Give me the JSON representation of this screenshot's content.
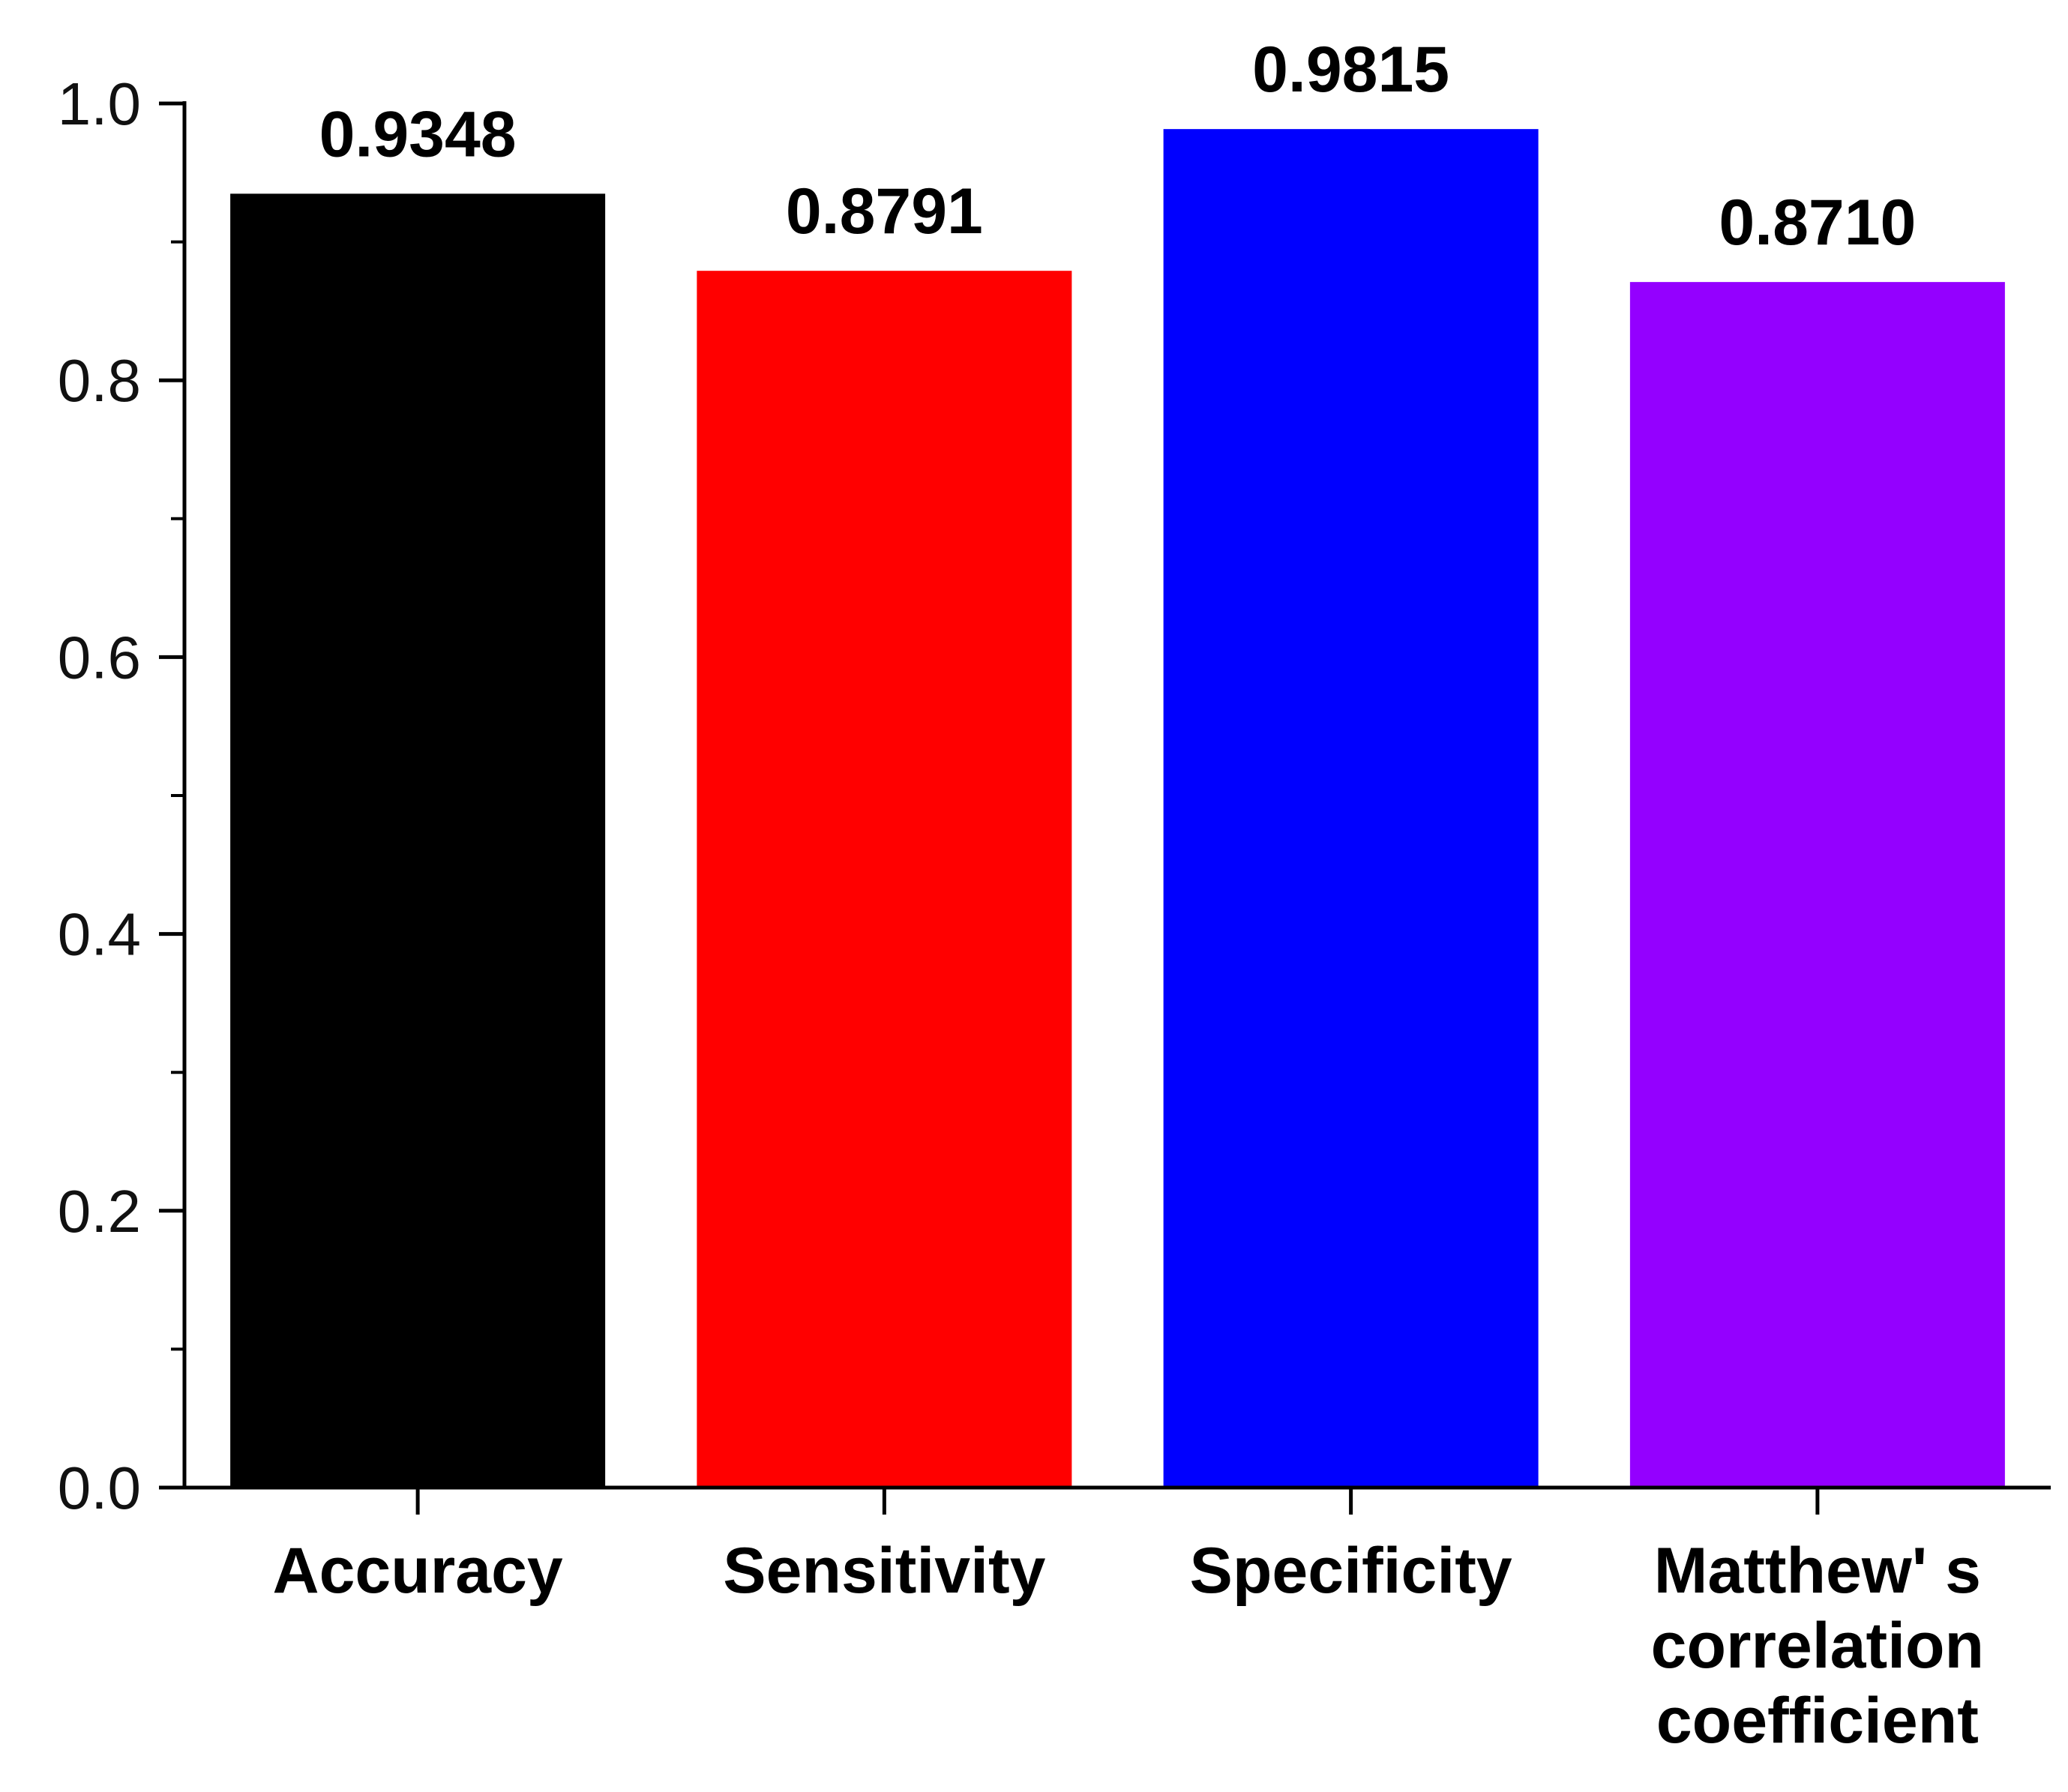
{
  "chart_data": {
    "type": "bar",
    "title": "",
    "xlabel": "",
    "ylabel": "",
    "ylim": [
      0,
      1.0
    ],
    "yticks": [
      "0.0",
      "0.2",
      "0.4",
      "0.6",
      "0.8",
      "1.0"
    ],
    "ytick_values": [
      0,
      0.2,
      0.4,
      0.6,
      0.8,
      1.0
    ],
    "minor_tick_step": 0.1,
    "grid": false,
    "categories": [
      [
        "Accuracy"
      ],
      [
        "Sensitivity"
      ],
      [
        "Specificity"
      ],
      [
        "Matthew' s",
        "correlation",
        "coefficient"
      ]
    ],
    "values": [
      0.9348,
      0.8791,
      0.9815,
      0.871
    ],
    "value_labels": [
      "0.9348",
      "0.8791",
      "0.9815",
      "0.8710"
    ],
    "colors": [
      "#000000",
      "#ff0000",
      "#0000ff",
      "#9400ff"
    ]
  }
}
